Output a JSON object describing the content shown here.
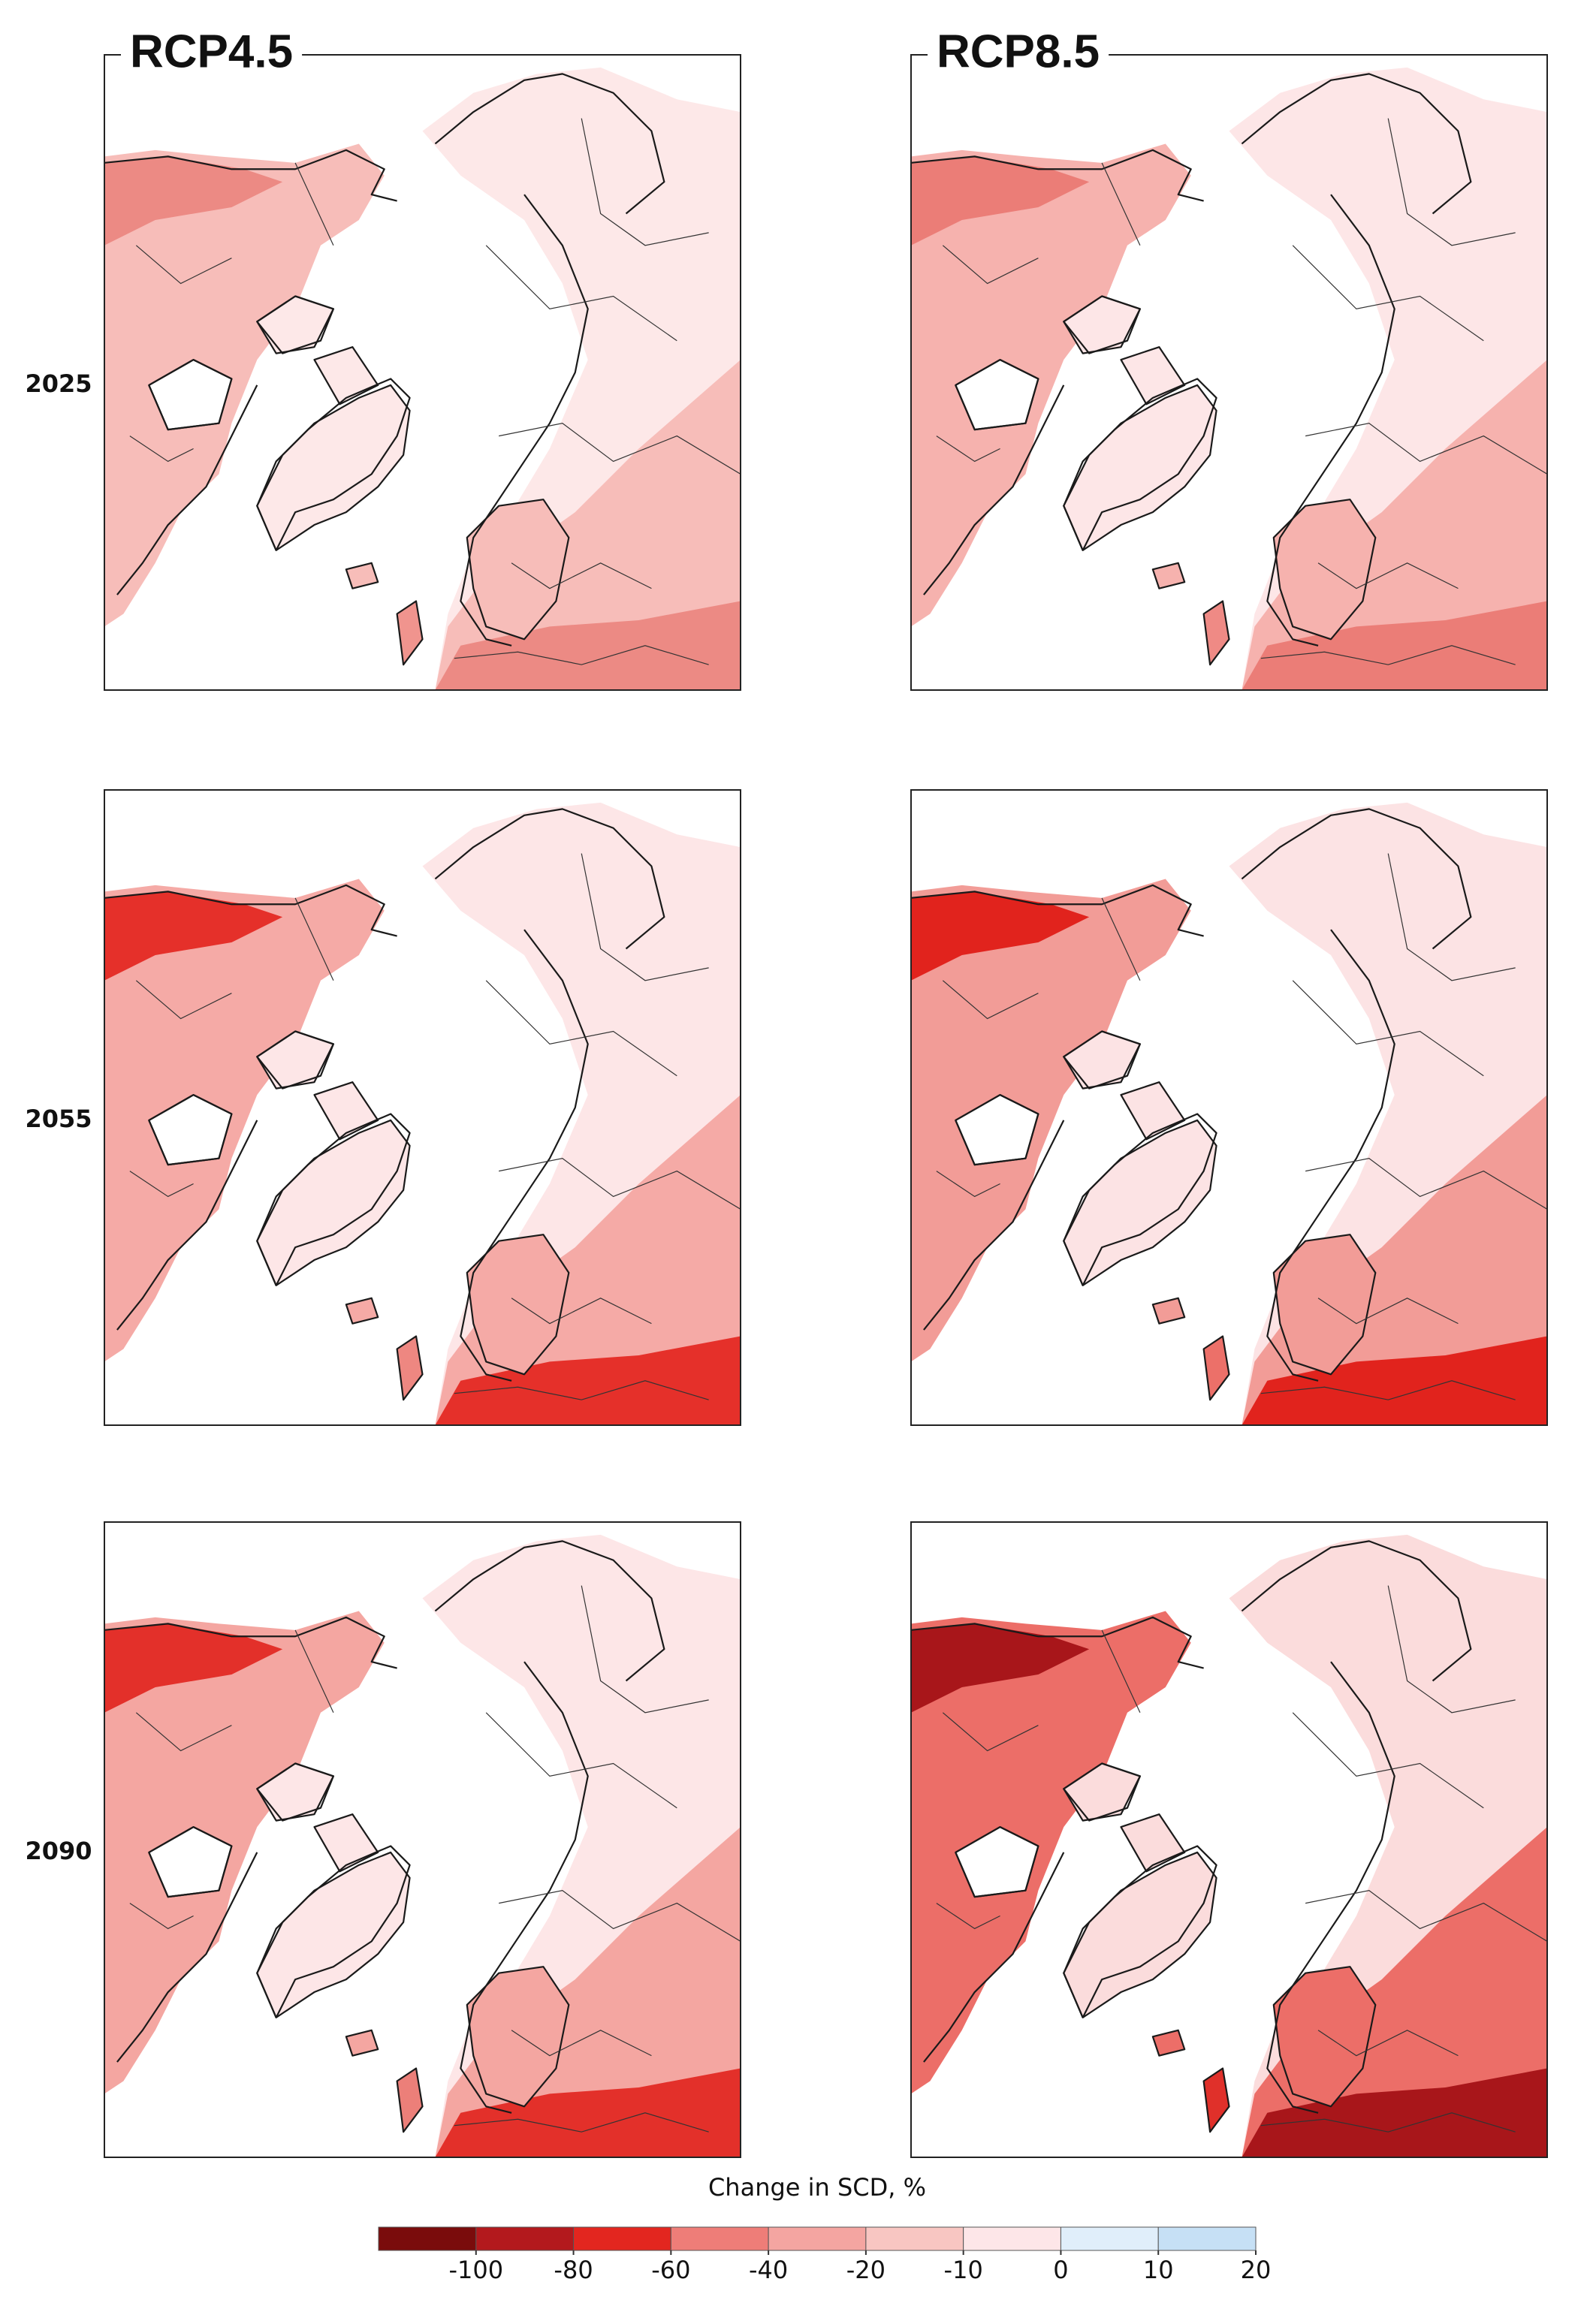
{
  "columns": [
    "RCP4.5",
    "RCP8.5"
  ],
  "rows": [
    "2025",
    "2055",
    "2090"
  ],
  "legend": {
    "title": "Change in SCD, %",
    "colors": [
      "#7a0c0c",
      "#b3191d",
      "#e3261f",
      "#ee7d78",
      "#f4a5a1",
      "#f8c6c2",
      "#fde6e8",
      "#e0eefa",
      "#c6e0f5"
    ],
    "ticks": [
      -100,
      -80,
      -60,
      -40,
      -20,
      -10,
      0,
      10,
      20
    ]
  }
}
